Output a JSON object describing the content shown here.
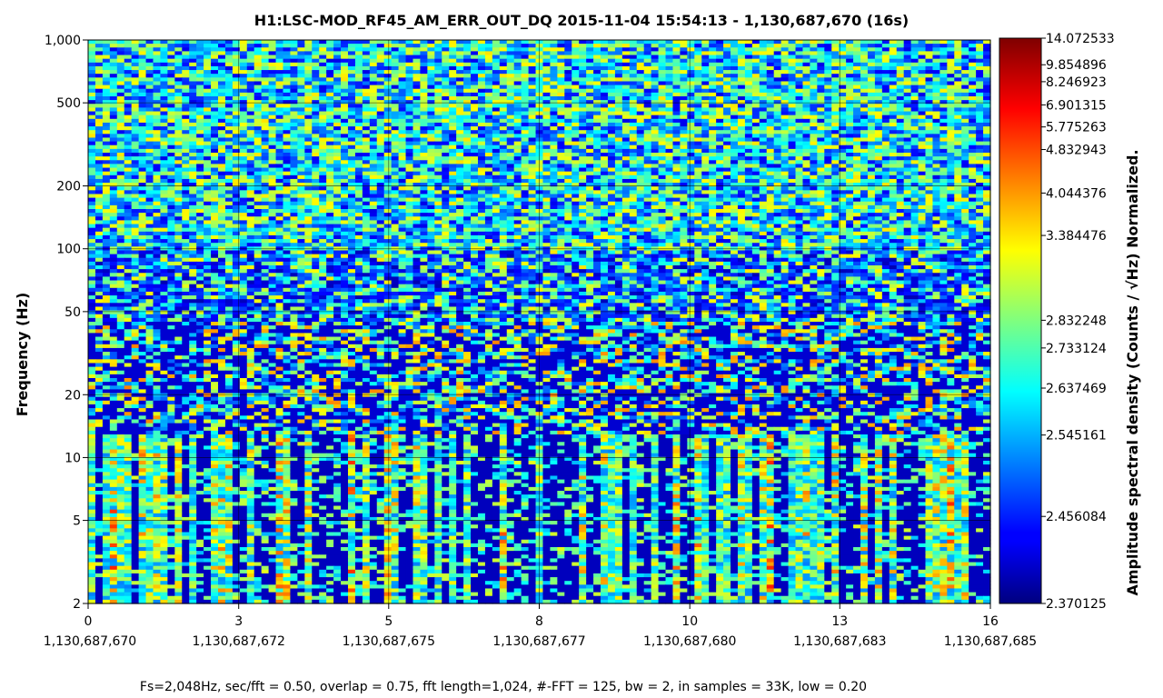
{
  "chart_data": {
    "type": "heatmap",
    "title": "H1:LSC-MOD_RF45_AM_ERR_OUT_DQ 2015-11-04 15:54:13 - 1,130,687,670 (16s)",
    "ylabel": "Frequency (Hz)",
    "colorbar_label": "Amplitude spectral density (Counts / √Hz) Normalized.",
    "footer": "Fs=2,048Hz, sec/fft = 0.50, overlap = 0.75, fft length=1,024, #-FFT = 125, bw = 2, in samples = 33K, low = 0.20",
    "x_ticks": [
      {
        "value": 0,
        "label": "0",
        "gps": "1,130,687,670"
      },
      {
        "value": 2.67,
        "label": "3",
        "gps": "1,130,687,672"
      },
      {
        "value": 5.33,
        "label": "5",
        "gps": "1,130,687,675"
      },
      {
        "value": 8,
        "label": "8",
        "gps": "1,130,687,677"
      },
      {
        "value": 10.67,
        "label": "10",
        "gps": "1,130,687,680"
      },
      {
        "value": 13.33,
        "label": "13",
        "gps": "1,130,687,683"
      },
      {
        "value": 16,
        "label": "16",
        "gps": "1,130,687,685"
      }
    ],
    "xlim": [
      0,
      16
    ],
    "y_ticks": [
      {
        "value": 2,
        "label": "2"
      },
      {
        "value": 5,
        "label": "5"
      },
      {
        "value": 10,
        "label": "10"
      },
      {
        "value": 20,
        "label": "20"
      },
      {
        "value": 50,
        "label": "50"
      },
      {
        "value": 100,
        "label": "100"
      },
      {
        "value": 200,
        "label": "200"
      },
      {
        "value": 500,
        "label": "500"
      },
      {
        "value": 1000,
        "label": "1,000"
      }
    ],
    "ylim": [
      2,
      1000
    ],
    "yscale": "log",
    "colorbar_ticks": [
      {
        "label": "14.072533",
        "frac": 1.0
      },
      {
        "label": "9.854896",
        "frac": 0.953
      },
      {
        "label": "8.246923",
        "frac": 0.923
      },
      {
        "label": "6.901315",
        "frac": 0.882
      },
      {
        "label": "5.775263",
        "frac": 0.843
      },
      {
        "label": "4.832943",
        "frac": 0.803
      },
      {
        "label": "4.044376",
        "frac": 0.726
      },
      {
        "label": "3.384476",
        "frac": 0.651
      },
      {
        "label": "2.832248",
        "frac": 0.501
      },
      {
        "label": "2.733124",
        "frac": 0.452
      },
      {
        "label": "2.637469",
        "frac": 0.381
      },
      {
        "label": "2.545161",
        "frac": 0.298
      },
      {
        "label": "2.456084",
        "frac": 0.154
      },
      {
        "label": "2.370125",
        "frac": 0.0
      }
    ],
    "colormap": "jet",
    "grid": true
  }
}
